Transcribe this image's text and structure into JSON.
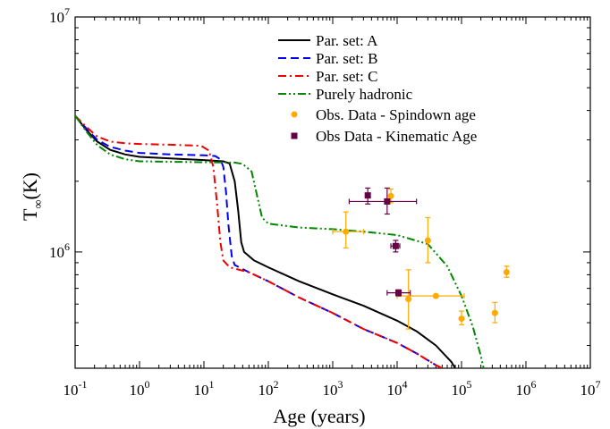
{
  "chart_data": {
    "type": "line",
    "xlabel": "Age (years)",
    "ylabel_main": "T",
    "ylabel_sub": "∞",
    "ylabel_unit": "(K)",
    "x_scale": "log",
    "y_scale": "log",
    "xlim": [
      0.1,
      10000000
    ],
    "ylim": [
      320000,
      10000000
    ],
    "grid": false,
    "legend_position": "top-right",
    "x_ticks": [
      {
        "value": 0.1,
        "base": "10",
        "exp": "-1"
      },
      {
        "value": 1,
        "base": "10",
        "exp": "0"
      },
      {
        "value": 10,
        "base": "10",
        "exp": "1"
      },
      {
        "value": 100,
        "base": "10",
        "exp": "2"
      },
      {
        "value": 1000,
        "base": "10",
        "exp": "3"
      },
      {
        "value": 10000,
        "base": "10",
        "exp": "4"
      },
      {
        "value": 100000,
        "base": "10",
        "exp": "5"
      },
      {
        "value": 1000000,
        "base": "10",
        "exp": "6"
      },
      {
        "value": 10000000,
        "base": "10",
        "exp": "7"
      }
    ],
    "y_ticks": [
      {
        "value": 1000000,
        "base": "10",
        "exp": "6"
      },
      {
        "value": 10000000,
        "base": "10",
        "exp": "7"
      }
    ],
    "series": [
      {
        "name": "Par. set: A",
        "color": "#000000",
        "dash": "solid",
        "points": [
          [
            0.1,
            3800000
          ],
          [
            0.15,
            3300000
          ],
          [
            0.22,
            2950000
          ],
          [
            0.35,
            2720000
          ],
          [
            0.6,
            2600000
          ],
          [
            1,
            2540000
          ],
          [
            3,
            2500000
          ],
          [
            10,
            2460000
          ],
          [
            20,
            2430000
          ],
          [
            25,
            2380000
          ],
          [
            30,
            2000000
          ],
          [
            34,
            1500000
          ],
          [
            38,
            1100000
          ],
          [
            42,
            1000000
          ],
          [
            60,
            920000
          ],
          [
            100,
            860000
          ],
          [
            300,
            750000
          ],
          [
            1000,
            660000
          ],
          [
            3000,
            590000
          ],
          [
            10000,
            510000
          ],
          [
            20000,
            460000
          ],
          [
            40000,
            400000
          ],
          [
            70000,
            340000
          ],
          [
            80000,
            320000
          ]
        ]
      },
      {
        "name": "Par. set: B",
        "color": "#0000ee",
        "dash": "dash",
        "points": [
          [
            0.1,
            3800000
          ],
          [
            0.15,
            3350000
          ],
          [
            0.22,
            3000000
          ],
          [
            0.35,
            2800000
          ],
          [
            0.6,
            2700000
          ],
          [
            1,
            2640000
          ],
          [
            3,
            2600000
          ],
          [
            10,
            2580000
          ],
          [
            15,
            2560000
          ],
          [
            18,
            2480000
          ],
          [
            20,
            2300000
          ],
          [
            22,
            1800000
          ],
          [
            24,
            1300000
          ],
          [
            27,
            960000
          ],
          [
            30,
            880000
          ],
          [
            50,
            820000
          ],
          [
            100,
            750000
          ],
          [
            300,
            640000
          ],
          [
            1000,
            550000
          ],
          [
            3000,
            470000
          ],
          [
            10000,
            410000
          ],
          [
            20000,
            370000
          ],
          [
            40000,
            330000
          ],
          [
            50000,
            320000
          ]
        ]
      },
      {
        "name": "Par. set: C",
        "color": "#ee0000",
        "dash": "dashdot",
        "points": [
          [
            0.1,
            3800000
          ],
          [
            0.15,
            3400000
          ],
          [
            0.22,
            3100000
          ],
          [
            0.35,
            2950000
          ],
          [
            0.6,
            2900000
          ],
          [
            1,
            2880000
          ],
          [
            3,
            2860000
          ],
          [
            9,
            2830000
          ],
          [
            12,
            2700000
          ],
          [
            14,
            2300000
          ],
          [
            16,
            1600000
          ],
          [
            18,
            1100000
          ],
          [
            20,
            920000
          ],
          [
            25,
            860000
          ],
          [
            50,
            820000
          ],
          [
            100,
            750000
          ],
          [
            300,
            640000
          ],
          [
            1000,
            550000
          ],
          [
            3000,
            470000
          ],
          [
            10000,
            410000
          ],
          [
            20000,
            370000
          ],
          [
            40000,
            330000
          ],
          [
            50000,
            320000
          ]
        ]
      },
      {
        "name": "Purely hadronic",
        "color": "#008800",
        "dash": "dashdotdot",
        "points": [
          [
            0.1,
            3800000
          ],
          [
            0.15,
            3250000
          ],
          [
            0.22,
            2850000
          ],
          [
            0.35,
            2600000
          ],
          [
            0.6,
            2480000
          ],
          [
            1,
            2430000
          ],
          [
            3,
            2420000
          ],
          [
            10,
            2410000
          ],
          [
            30,
            2400000
          ],
          [
            40,
            2370000
          ],
          [
            55,
            2200000
          ],
          [
            65,
            1800000
          ],
          [
            80,
            1400000
          ],
          [
            100,
            1320000
          ],
          [
            300,
            1270000
          ],
          [
            1000,
            1250000
          ],
          [
            3000,
            1220000
          ],
          [
            10000,
            1180000
          ],
          [
            30000,
            1080000
          ],
          [
            60000,
            870000
          ],
          [
            100000,
            650000
          ],
          [
            150000,
            480000
          ],
          [
            200000,
            360000
          ],
          [
            220000,
            320000
          ]
        ]
      }
    ],
    "observations": [
      {
        "name": "Obs. Data - Spindown age",
        "color": "#ffaa00",
        "marker": "circle",
        "points": [
          {
            "x": 1600,
            "y": 1220000,
            "xlo": 1000,
            "xhi": 3000,
            "ylo": 1040000,
            "yhi": 1480000
          },
          {
            "x": 8000,
            "y": 1730000,
            "xlo": 8000,
            "xhi": 8000,
            "ylo": 1620000,
            "yhi": 1850000
          },
          {
            "x": 30000,
            "y": 1120000,
            "xlo": 30000,
            "xhi": 30000,
            "ylo": 900000,
            "yhi": 1400000
          },
          {
            "x": 40000,
            "y": 650000,
            "xlo": 10000,
            "xhi": 110000,
            "ylo": 650000,
            "yhi": 650000
          },
          {
            "x": 15000,
            "y": 630000,
            "xlo": 15000,
            "xhi": 15000,
            "ylo": 470000,
            "yhi": 840000
          },
          {
            "x": 100000,
            "y": 520000,
            "xlo": 100000,
            "xhi": 100000,
            "ylo": 490000,
            "yhi": 560000
          },
          {
            "x": 330000,
            "y": 550000,
            "xlo": 330000,
            "xhi": 330000,
            "ylo": 500000,
            "yhi": 610000
          },
          {
            "x": 500000,
            "y": 820000,
            "xlo": 500000,
            "xhi": 500000,
            "ylo": 780000,
            "yhi": 870000
          }
        ]
      },
      {
        "name": "Obs Data - Kinematic Age",
        "color": "#660044",
        "marker": "square",
        "points": [
          {
            "x": 3500,
            "y": 1740000,
            "xlo": 3500,
            "xhi": 3500,
            "ylo": 1600000,
            "yhi": 1870000
          },
          {
            "x": 7000,
            "y": 1640000,
            "xlo": 1800,
            "xhi": 20000,
            "ylo": 1450000,
            "yhi": 1870000
          },
          {
            "x": 9500,
            "y": 1060000,
            "xlo": 8000,
            "xhi": 11000,
            "ylo": 1000000,
            "yhi": 1120000
          },
          {
            "x": 10500,
            "y": 670000,
            "xlo": 7000,
            "xhi": 16000,
            "ylo": 650000,
            "yhi": 690000
          }
        ]
      }
    ]
  }
}
